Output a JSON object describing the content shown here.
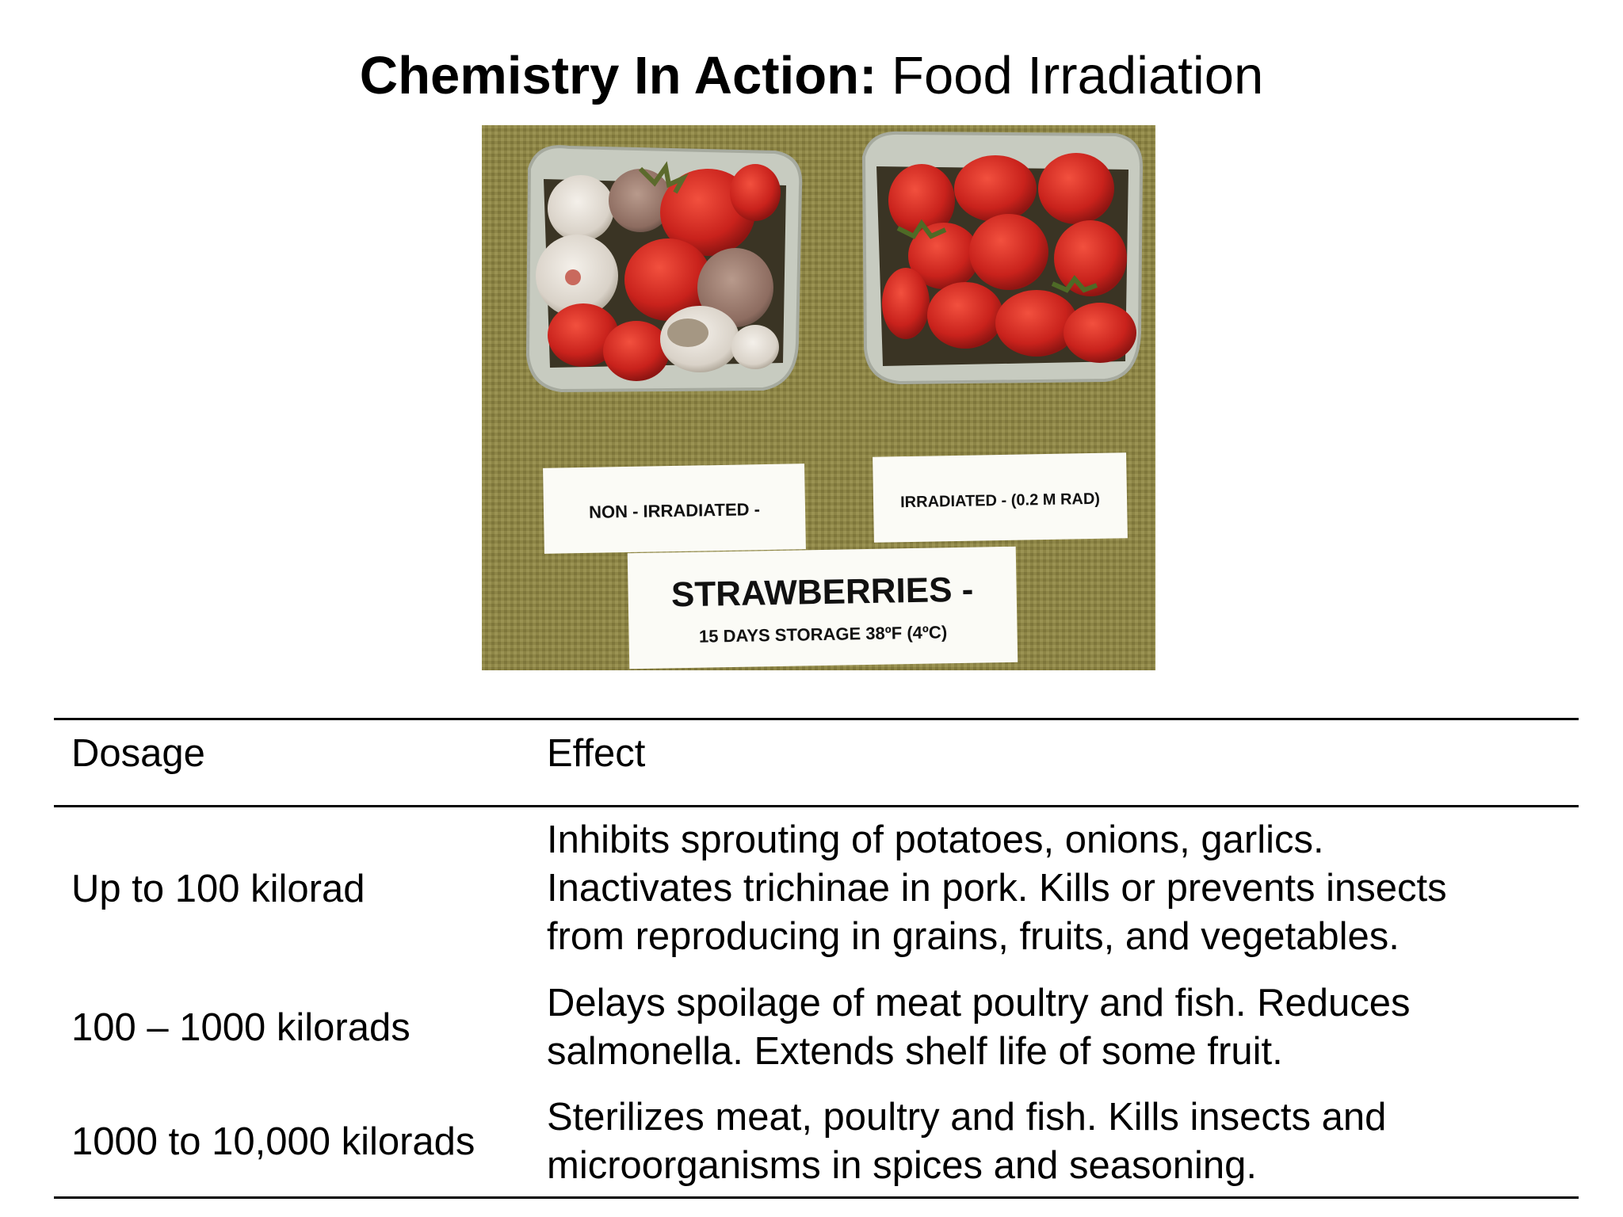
{
  "title": {
    "bold": "Chemistry In Action:",
    "regular": "Food Irradiation"
  },
  "photo": {
    "left_card": "NON - IRRADIATED -",
    "right_card": "IRRADIATED - (0.2 M RAD)",
    "center_title": "STRAWBERRIES -",
    "center_subtitle": "15 DAYS STORAGE 38ºF (4ºC)"
  },
  "table": {
    "headers": {
      "dosage": "Dosage",
      "effect": "Effect"
    },
    "rows": [
      {
        "dosage": "Up to 100 kilorad",
        "effect": [
          "Inhibits sprouting of potatoes, onions, garlics.",
          "Inactivates trichinae in pork. Kills or prevents insects",
          "from reproducing in grains, fruits, and vegetables."
        ]
      },
      {
        "dosage": "100 – 1000 kilorads",
        "effect": [
          "Delays spoilage of meat poultry and fish. Reduces",
          "salmonella. Extends shelf life of some fruit."
        ]
      },
      {
        "dosage": "1000 to 10,000 kilorads",
        "effect": [
          "Sterilizes meat, poultry and fish. Kills insects and",
          "microorganisms in spices and seasoning."
        ]
      }
    ]
  }
}
